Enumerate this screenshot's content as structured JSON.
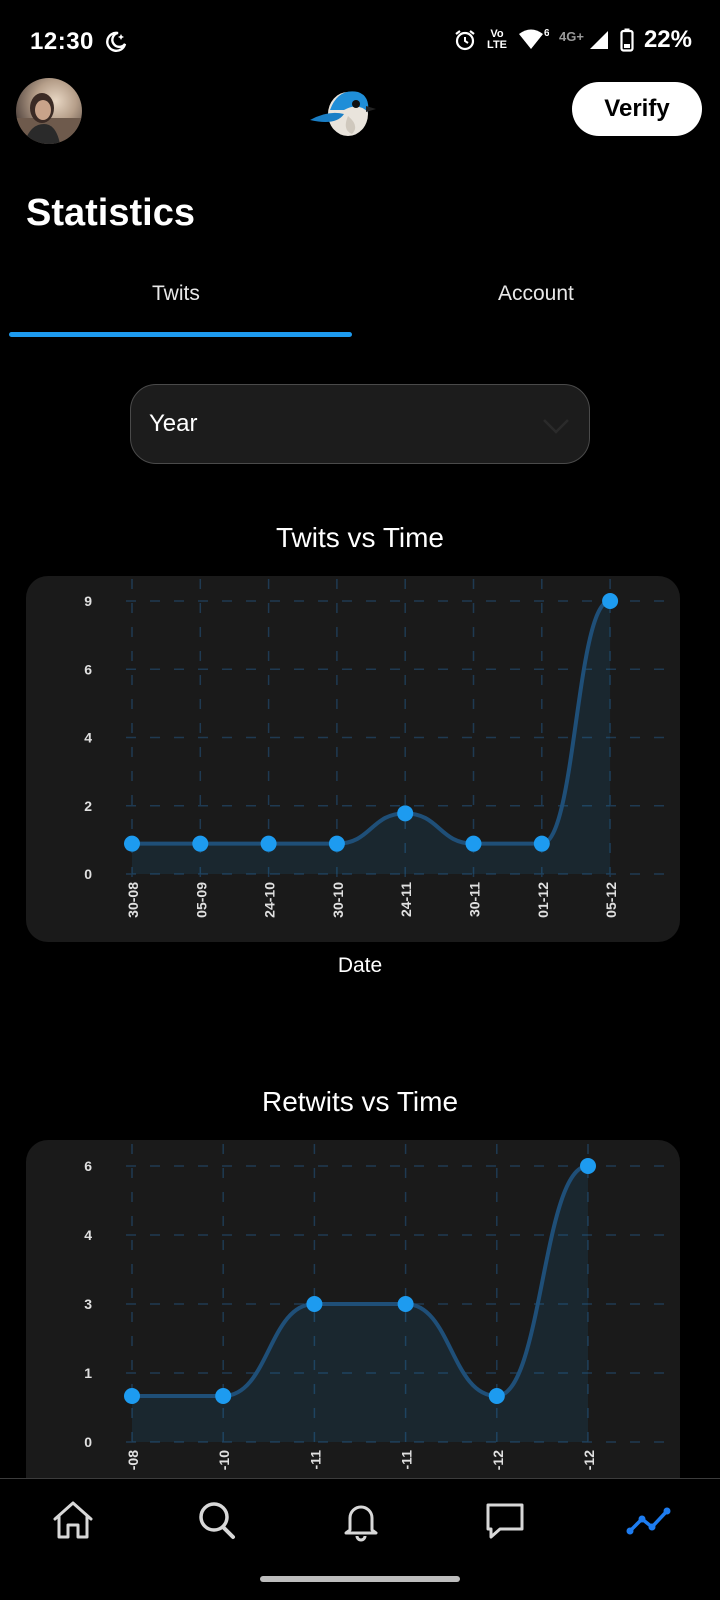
{
  "status_bar": {
    "time": "12:30",
    "network": "4G+",
    "volte_top": "Vo",
    "volte_bottom": "LTE",
    "wifi_badge": "6",
    "battery": "22%"
  },
  "header": {
    "verify_label": "Verify"
  },
  "page": {
    "title": "Statistics"
  },
  "tabs": [
    {
      "label": "Twits",
      "active": true
    },
    {
      "label": "Account",
      "active": false
    }
  ],
  "period_select": {
    "value": "Year"
  },
  "colors": {
    "accent": "#1d9bf0",
    "background": "#000000",
    "card": "#1a1a1a"
  },
  "chart_data": [
    {
      "type": "area",
      "title": "Twits vs Time",
      "xlabel": "Date",
      "ylabel": "",
      "x": [
        "30-08",
        "05-09",
        "24-10",
        "30-10",
        "24-11",
        "30-11",
        "01-12",
        "05-12"
      ],
      "y": [
        1,
        1,
        1,
        1,
        2,
        1,
        1,
        9
      ],
      "y_ticks": [
        "0",
        "2",
        "4",
        "6",
        "9"
      ],
      "ylim": [
        0,
        9
      ],
      "grid": true,
      "legend": "none"
    },
    {
      "type": "area",
      "title": "Retwits vs Time",
      "xlabel": "",
      "ylabel": "",
      "x": [
        "-08",
        "-10",
        "-11",
        "-11",
        "-12",
        "-12"
      ],
      "y": [
        1,
        1,
        3,
        3,
        1,
        6
      ],
      "y_ticks": [
        "0",
        "1",
        "3",
        "4",
        "6"
      ],
      "ylim": [
        0,
        6
      ],
      "grid": true,
      "legend": "none"
    }
  ],
  "nav": [
    {
      "icon": "home-icon"
    },
    {
      "icon": "search-icon"
    },
    {
      "icon": "bell-icon"
    },
    {
      "icon": "chat-icon"
    },
    {
      "icon": "stats-icon",
      "active": true
    }
  ]
}
